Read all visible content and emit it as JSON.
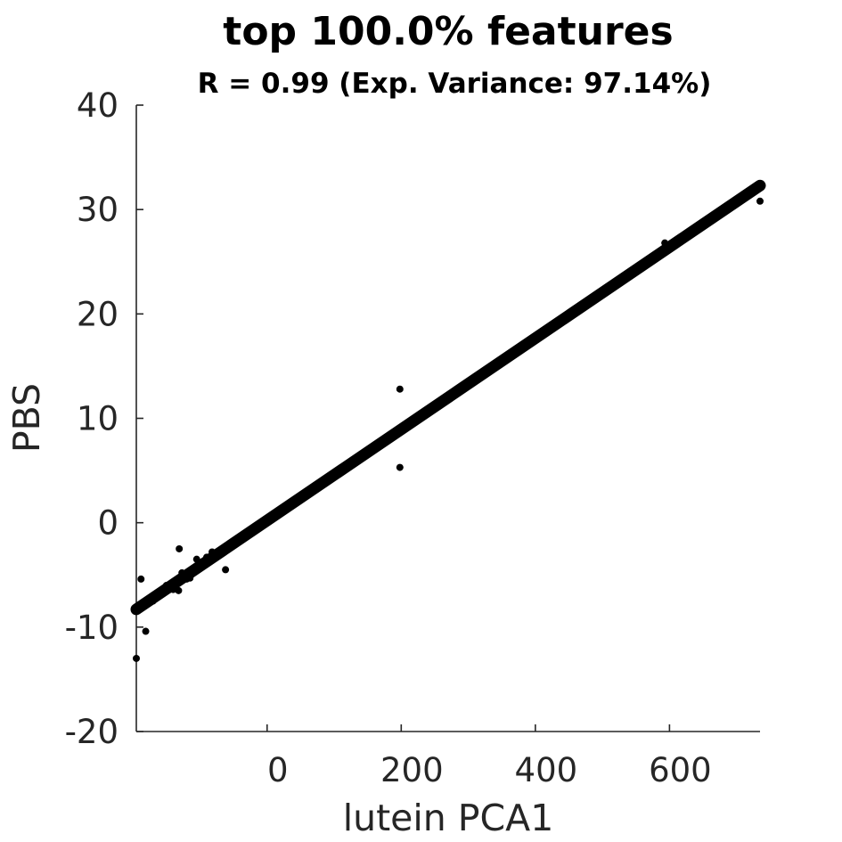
{
  "chart_data": {
    "type": "scatter",
    "title": "top 100.0% features",
    "subtitle": "R = 0.99 (Exp. Variance: 97.14%)",
    "xlabel": "lutein PCA1",
    "ylabel": "PBS",
    "xlim": [
      -195,
      735
    ],
    "ylim": [
      -20,
      40
    ],
    "xticks": [
      0,
      200,
      400,
      600
    ],
    "xtick_labels": [
      "0",
      "200",
      "400",
      "600"
    ],
    "yticks": [
      -20,
      -10,
      0,
      10,
      20,
      30,
      40
    ],
    "ytick_labels": [
      "-20",
      "-10",
      "0",
      "10",
      "20",
      "30",
      "40"
    ],
    "grid": false,
    "fit_line": {
      "x": [
        -195,
        735
      ],
      "y": [
        -8.3,
        32.3
      ]
    },
    "points": [
      {
        "x": -195,
        "y": -13.0
      },
      {
        "x": -188,
        "y": -5.4
      },
      {
        "x": -186,
        "y": -8.0
      },
      {
        "x": -181,
        "y": -10.4
      },
      {
        "x": -178,
        "y": -7.7
      },
      {
        "x": -170,
        "y": -7.5
      },
      {
        "x": -150,
        "y": -6.0
      },
      {
        "x": -140,
        "y": -6.4
      },
      {
        "x": -132,
        "y": -6.5
      },
      {
        "x": -131,
        "y": -2.5
      },
      {
        "x": -127,
        "y": -4.8
      },
      {
        "x": -120,
        "y": -5.4
      },
      {
        "x": -115,
        "y": -5.3
      },
      {
        "x": -105,
        "y": -3.5
      },
      {
        "x": -95,
        "y": -3.8
      },
      {
        "x": -90,
        "y": -3.3
      },
      {
        "x": -82,
        "y": -2.8
      },
      {
        "x": -62,
        "y": -4.5
      },
      {
        "x": 198,
        "y": 12.8
      },
      {
        "x": 198,
        "y": 5.3
      },
      {
        "x": 280,
        "y": 12.6
      },
      {
        "x": 593,
        "y": 26.8
      },
      {
        "x": 735,
        "y": 30.8
      }
    ]
  }
}
